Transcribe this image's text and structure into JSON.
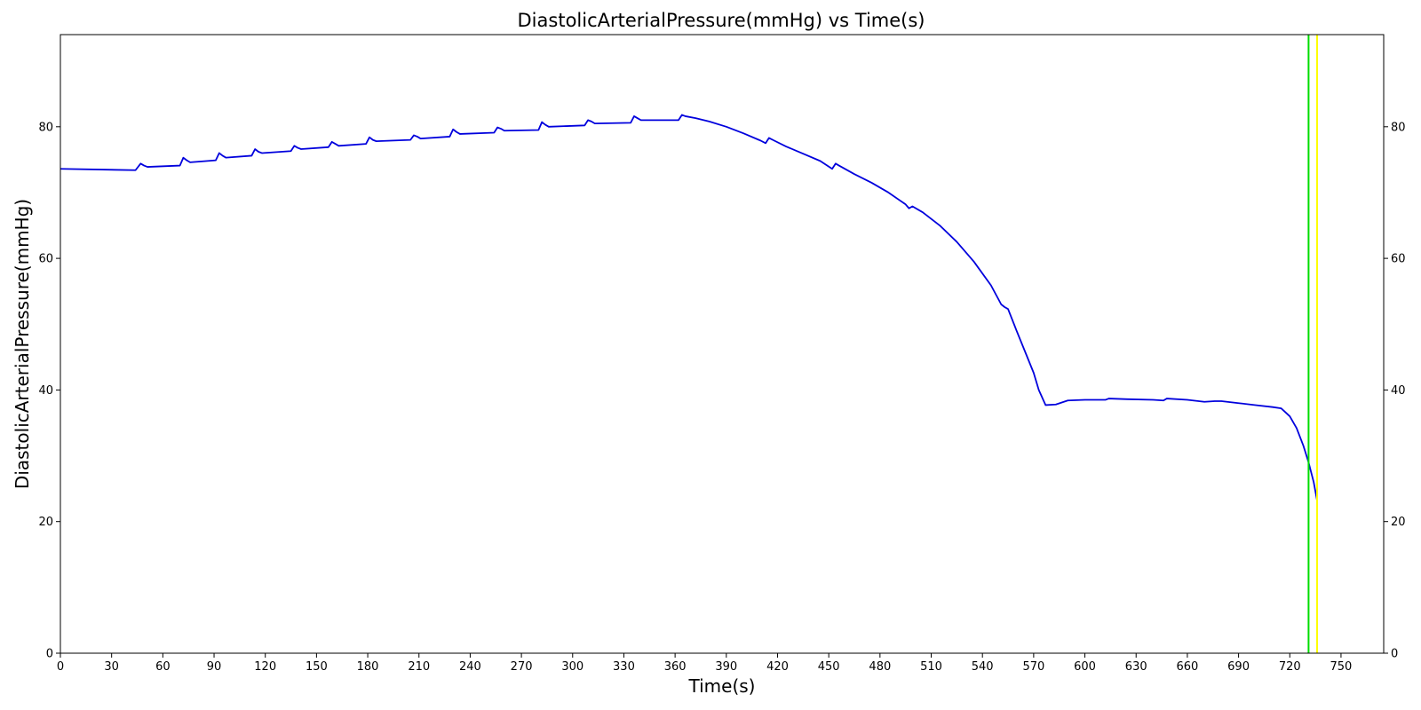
{
  "chart_data": {
    "type": "line",
    "title": "DiastolicArterialPressure(mmHg) vs Time(s)",
    "xlabel": "Time(s)",
    "ylabel": "DiastolicArterialPressure(mmHg)",
    "xlim": [
      0,
      775
    ],
    "ylim": [
      0,
      94
    ],
    "x_ticks": [
      0,
      30,
      60,
      90,
      120,
      150,
      180,
      210,
      240,
      270,
      300,
      330,
      360,
      390,
      420,
      450,
      480,
      510,
      540,
      570,
      600,
      630,
      660,
      690,
      720,
      750
    ],
    "y_ticks": [
      0,
      20,
      40,
      60,
      80
    ],
    "grid": false,
    "right_axis_ticks": true,
    "series": [
      {
        "color": "#0000dd",
        "points": [
          [
            0,
            73.6
          ],
          [
            44,
            73.4
          ],
          [
            47,
            74.4
          ],
          [
            49,
            74.1
          ],
          [
            51,
            73.9
          ],
          [
            70,
            74.1
          ],
          [
            72,
            75.3
          ],
          [
            74,
            74.9
          ],
          [
            76,
            74.6
          ],
          [
            91,
            74.9
          ],
          [
            93,
            76.0
          ],
          [
            95,
            75.6
          ],
          [
            97,
            75.3
          ],
          [
            112,
            75.6
          ],
          [
            114,
            76.6
          ],
          [
            116,
            76.2
          ],
          [
            118,
            76.0
          ],
          [
            135,
            76.3
          ],
          [
            137,
            77.1
          ],
          [
            139,
            76.8
          ],
          [
            141,
            76.6
          ],
          [
            157,
            76.9
          ],
          [
            159,
            77.7
          ],
          [
            161,
            77.4
          ],
          [
            163,
            77.1
          ],
          [
            179,
            77.4
          ],
          [
            181,
            78.4
          ],
          [
            183,
            78.0
          ],
          [
            185,
            77.8
          ],
          [
            205,
            78.0
          ],
          [
            207,
            78.7
          ],
          [
            209,
            78.5
          ],
          [
            211,
            78.2
          ],
          [
            228,
            78.5
          ],
          [
            230,
            79.6
          ],
          [
            232,
            79.2
          ],
          [
            234,
            78.9
          ],
          [
            254,
            79.1
          ],
          [
            256,
            79.9
          ],
          [
            258,
            79.7
          ],
          [
            260,
            79.4
          ],
          [
            280,
            79.5
          ],
          [
            282,
            80.7
          ],
          [
            284,
            80.3
          ],
          [
            286,
            80.0
          ],
          [
            307,
            80.2
          ],
          [
            309,
            81.0
          ],
          [
            311,
            80.8
          ],
          [
            313,
            80.5
          ],
          [
            334,
            80.6
          ],
          [
            336,
            81.6
          ],
          [
            338,
            81.3
          ],
          [
            340,
            81.0
          ],
          [
            362,
            81.0
          ],
          [
            364,
            81.8
          ],
          [
            366,
            81.6
          ],
          [
            372,
            81.3
          ],
          [
            380,
            80.8
          ],
          [
            390,
            80.0
          ],
          [
            400,
            79.0
          ],
          [
            410,
            77.9
          ],
          [
            413,
            77.5
          ],
          [
            415,
            78.3
          ],
          [
            418,
            77.9
          ],
          [
            425,
            77.0
          ],
          [
            435,
            75.9
          ],
          [
            445,
            74.8
          ],
          [
            452,
            73.6
          ],
          [
            454,
            74.4
          ],
          [
            456,
            74.1
          ],
          [
            465,
            72.8
          ],
          [
            475,
            71.5
          ],
          [
            485,
            70.0
          ],
          [
            495,
            68.2
          ],
          [
            497,
            67.6
          ],
          [
            499,
            67.9
          ],
          [
            505,
            67.0
          ],
          [
            515,
            65.0
          ],
          [
            525,
            62.5
          ],
          [
            535,
            59.5
          ],
          [
            545,
            55.9
          ],
          [
            551,
            53.0
          ],
          [
            553,
            52.6
          ],
          [
            555,
            52.3
          ],
          [
            560,
            49.0
          ],
          [
            565,
            45.8
          ],
          [
            570,
            42.6
          ],
          [
            573,
            40.0
          ],
          [
            577,
            37.7
          ],
          [
            583,
            37.8
          ],
          [
            590,
            38.4
          ],
          [
            600,
            38.5
          ],
          [
            612,
            38.5
          ],
          [
            614,
            38.7
          ],
          [
            625,
            38.6
          ],
          [
            640,
            38.5
          ],
          [
            646,
            38.4
          ],
          [
            648,
            38.7
          ],
          [
            660,
            38.5
          ],
          [
            670,
            38.2
          ],
          [
            676,
            38.3
          ],
          [
            680,
            38.3
          ],
          [
            690,
            38.0
          ],
          [
            700,
            37.7
          ],
          [
            710,
            37.4
          ],
          [
            715,
            37.2
          ],
          [
            720,
            36.0
          ],
          [
            724,
            34.2
          ],
          [
            728,
            31.5
          ],
          [
            731,
            29.0
          ],
          [
            734,
            26.0
          ],
          [
            736,
            23.2
          ]
        ]
      }
    ],
    "vertical_lines": [
      {
        "x": 731,
        "color": "#00dd00"
      },
      {
        "x": 736,
        "color": "#ffff00"
      }
    ]
  }
}
